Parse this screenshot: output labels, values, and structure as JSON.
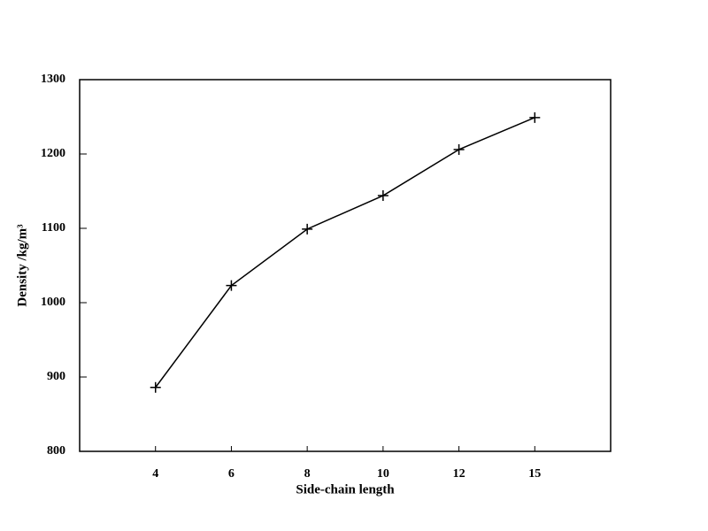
{
  "chart_data": {
    "type": "line",
    "xlabel": "Side-chain length",
    "ylabel": "Density /kg/m³",
    "categories": [
      "4",
      "6",
      "8",
      "10",
      "12",
      "15"
    ],
    "values": [
      886,
      1023,
      1099,
      1144,
      1206,
      1249
    ],
    "color": "#000000",
    "marker": "plus",
    "ylim": [
      800,
      1300
    ],
    "yticks": [
      800,
      900,
      1000,
      1100,
      1200,
      1300
    ],
    "grid": false
  }
}
